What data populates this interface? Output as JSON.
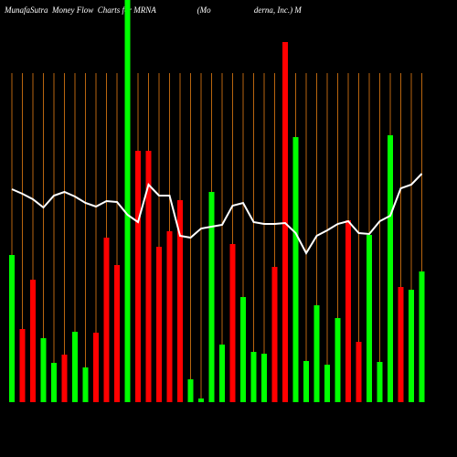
{
  "chart_data": {
    "type": "bar",
    "title": "MunafaSutra  Money Flow  Charts for MRNA                    (Mo                     derna, Inc.) M",
    "categories": [
      null,
      null,
      null,
      null,
      null,
      null,
      null,
      null,
      null,
      null,
      null,
      null,
      null,
      null,
      null,
      null,
      null,
      null,
      null,
      null,
      null,
      null,
      null,
      null,
      null,
      null,
      null,
      null,
      null,
      null,
      null,
      null,
      null,
      null,
      null,
      null,
      null,
      null,
      null,
      null
    ],
    "values": [
      161,
      80,
      134,
      70,
      43,
      52,
      77,
      38,
      76,
      180,
      150,
      440,
      275,
      275,
      170,
      187,
      221,
      25,
      4,
      230,
      63,
      173,
      115,
      55,
      53,
      148,
      394,
      290,
      45,
      106,
      41,
      92,
      199,
      66,
      183,
      44,
      292,
      126,
      123,
      143
    ],
    "colors": [
      "#00ff00",
      "#ff0000",
      "#ff0000",
      "#00ff00",
      "#00ff00",
      "#ff0000",
      "#00ff00",
      "#00ff00",
      "#ff0000",
      "#ff0000",
      "#ff0000",
      "#00ff00",
      "#ff0000",
      "#ff0000",
      "#ff0000",
      "#ff0000",
      "#ff0000",
      "#00ff00",
      "#00ff00",
      "#00ff00",
      "#00ff00",
      "#ff0000",
      "#00ff00",
      "#00ff00",
      "#00ff00",
      "#ff0000",
      "#ff0000",
      "#00ff00",
      "#00ff00",
      "#00ff00",
      "#00ff00",
      "#00ff00",
      "#ff0000",
      "#ff0000",
      "#00ff00",
      "#00ff00",
      "#00ff00",
      "#ff0000",
      "#00ff00",
      "#00ff00"
    ],
    "line": {
      "color": "#ffffff",
      "values": [
        233,
        228,
        222,
        213,
        226,
        230,
        225,
        218,
        214,
        220,
        219,
        205,
        197,
        238,
        226,
        226,
        182,
        180,
        190,
        192,
        194,
        215,
        218,
        197,
        195,
        195,
        196,
        185,
        163,
        182,
        188,
        195,
        198,
        185,
        184,
        198,
        204,
        234,
        238,
        250
      ]
    },
    "ylim": [
      0,
      440
    ],
    "grid": true,
    "grid_color": "#b8650f"
  }
}
